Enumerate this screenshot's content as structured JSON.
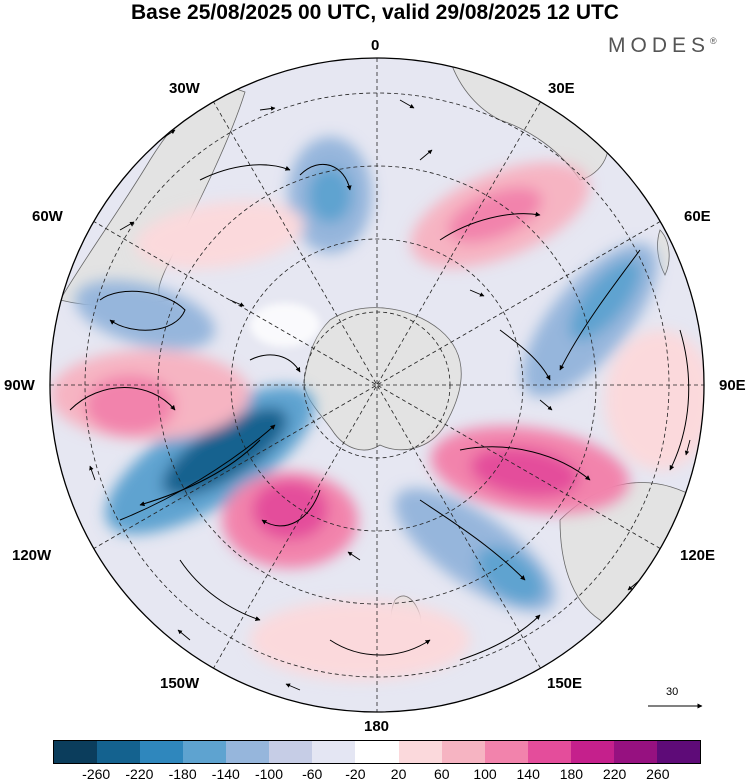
{
  "title": "Base 25/08/2025 00 UTC, valid 29/08/2025 12 UTC",
  "brand": "MODES",
  "brand_mark": "®",
  "longitude_labels": {
    "top": "0",
    "top_left": "30W",
    "top_right": "30E",
    "upper_left": "60W",
    "upper_right": "60E",
    "left": "90W",
    "right": "90E",
    "lower_left": "120W",
    "lower_right": "120E",
    "bottom_left": "150W",
    "bottom_right": "150E",
    "bottom": "180"
  },
  "reference_vector_label": "30",
  "colorbar": {
    "colors": [
      "#0b3d5c",
      "#14628f",
      "#2f87bd",
      "#5ea3d0",
      "#96b6dc",
      "#c6cde6",
      "#e4e6f3",
      "#ffffff",
      "#fbd9dc",
      "#f6b4c2",
      "#f283ac",
      "#e44d9b",
      "#c5208c",
      "#961180",
      "#5e0b78"
    ],
    "ticks": [
      "-260",
      "-220",
      "-180",
      "-140",
      "-100",
      "-60",
      "-20",
      "20",
      "60",
      "100",
      "140",
      "180",
      "220",
      "260"
    ]
  }
}
